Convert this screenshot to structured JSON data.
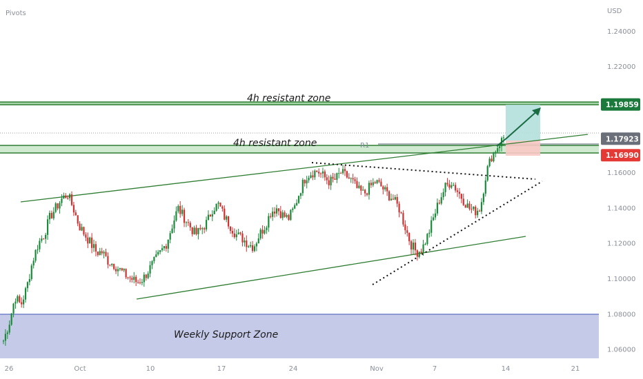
{
  "app": {
    "indicator_label": "Pivots",
    "currency": "USD"
  },
  "colors": {
    "up_candle": "#26a69a",
    "green_candle": "#1b8a3a",
    "red_candle": "#d32f2f",
    "zone_line": "#2e7d32",
    "support_fill": "#c5cae9",
    "support_line": "#3f51b5",
    "tp_fill": "#b2dfdb",
    "sl_fill": "#f8c9c4",
    "arrow": "#1b6b45",
    "tag_green": "#1b7a3b",
    "tag_gray": "#6b6f7a",
    "tag_red": "#e53935"
  },
  "annotations": {
    "upper_zone_label": "4h resistant zone",
    "lower_zone_label": "4h resistant zone",
    "support_zone_label": "Weekly Support Zone",
    "pivot_label": "R1"
  },
  "price_tags": [
    {
      "label": "1.19859",
      "price": 1.19859,
      "color": "#1b7a3b"
    },
    {
      "label": "1.17923",
      "price": 1.17923,
      "color": "#6b6f7a"
    },
    {
      "label": "1.16990",
      "price": 1.1699,
      "color": "#e53935"
    }
  ],
  "chart_data": {
    "type": "line",
    "title": "",
    "ylabel": "USD",
    "ylim": [
      1.055,
      1.253
    ],
    "y_ticks": [
      "1.24000",
      "1.22000",
      "1.20000",
      "1.18000",
      "1.16000",
      "1.14000",
      "1.12000",
      "1.10000",
      "1.08000",
      "1.06000"
    ],
    "y_tick_values": [
      1.24,
      1.22,
      1.2,
      1.18,
      1.16,
      1.14,
      1.12,
      1.1,
      1.08,
      1.06
    ],
    "x_ticks": [
      "26",
      "Oct",
      "10",
      "17",
      "24",
      "Nov",
      "7",
      "14",
      "21"
    ],
    "grid": false,
    "series": [
      {
        "values": [
          1.065,
          1.075,
          1.09,
          1.085,
          1.095,
          1.11,
          1.12,
          1.125,
          1.135,
          1.14,
          1.145,
          1.148,
          1.14,
          1.13,
          1.125,
          1.12,
          1.115,
          1.115,
          1.11,
          1.108,
          1.105,
          1.102,
          1.1,
          1.098,
          1.1,
          1.105,
          1.11,
          1.115,
          1.12,
          1.13,
          1.14,
          1.135,
          1.13,
          1.125,
          1.128,
          1.132,
          1.14,
          1.142,
          1.135,
          1.13,
          1.125,
          1.123,
          1.12,
          1.118,
          1.125,
          1.13,
          1.138,
          1.14,
          1.136,
          1.134,
          1.14,
          1.15,
          1.158,
          1.16,
          1.161,
          1.158,
          1.155,
          1.156,
          1.16,
          1.158,
          1.155,
          1.15,
          1.148,
          1.152,
          1.155,
          1.152,
          1.148,
          1.145,
          1.14,
          1.13,
          1.12,
          1.115,
          1.117,
          1.125,
          1.135,
          1.145,
          1.152,
          1.155,
          1.15,
          1.145,
          1.14,
          1.138,
          1.14,
          1.16,
          1.17,
          1.175,
          1.18
        ]
      }
    ],
    "zones": {
      "upper_resistance": [
        1.19859,
        1.1996
      ],
      "lower_resistance": [
        1.1699,
        1.1745
      ],
      "weekly_support": [
        1.055,
        1.0795
      ],
      "pivot_r1": 1.1748,
      "last_price_line": 1.17923
    },
    "position": {
      "target": 1.1995,
      "entry": 1.175,
      "stop": 1.1699
    }
  }
}
